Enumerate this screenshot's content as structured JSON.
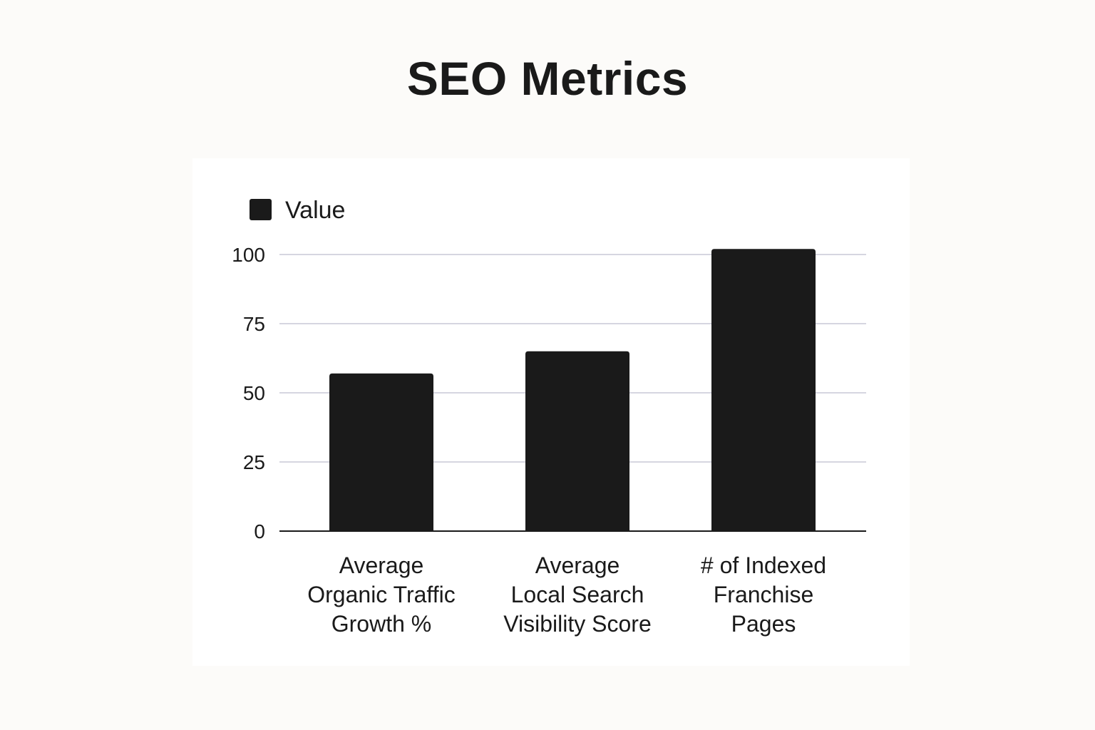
{
  "chart_data": {
    "type": "bar",
    "title": "SEO Metrics",
    "categories": [
      [
        "Average",
        "Organic Traffic",
        "Growth %"
      ],
      [
        "Average",
        "Local Search",
        "Visibility Score"
      ],
      [
        "# of Indexed",
        "Franchise",
        "Pages"
      ]
    ],
    "series": [
      {
        "name": "Value",
        "values": [
          57,
          65,
          102
        ],
        "color": "#1a1a1a"
      }
    ],
    "yticks": [
      0,
      25,
      50,
      75,
      100
    ],
    "ylim": [
      0,
      100
    ],
    "grid": true,
    "legend": "top-left",
    "grid_color": "#c9c9d6",
    "axis_color": "#1a1a1a"
  }
}
